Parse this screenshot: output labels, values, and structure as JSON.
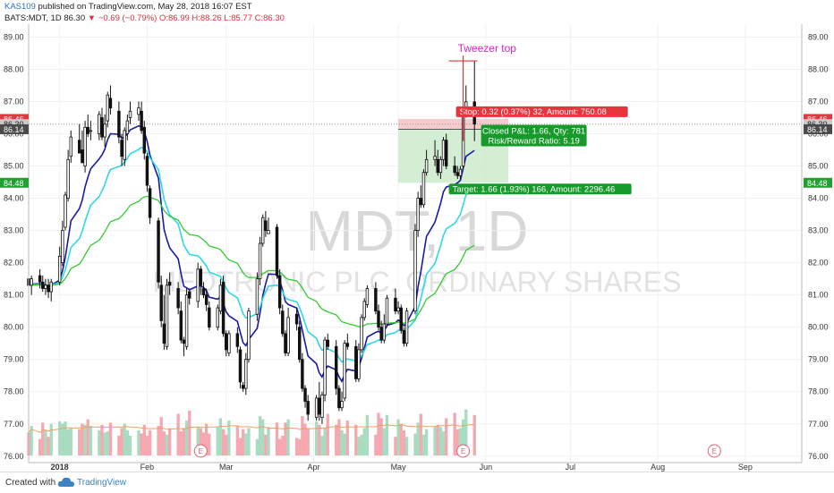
{
  "header": {
    "author": "KAS109",
    "published": " published on TradingView.com, May 28, 2018 16:07 EST",
    "symbol": "BATS:MDT, 1D",
    "last": "86.30",
    "change_arrow": "▼",
    "change": "−0.69 (−0.79%)",
    "ohlc": "O:86.99 H:88.26 L:85.77 C:86.30"
  },
  "watermark": {
    "symbol": "MDT, 1D",
    "name": "MEDTRONIC PLC. ORDINARY SHARES"
  },
  "annotation": {
    "text": "Tweezer top",
    "color": "#e020c8"
  },
  "position": {
    "stop_label": "Stop: 0.32 (0.37%) 32, Amount: 750.08",
    "pnl_label": "Closed P&L: 1.66, Qty: 781",
    "rr_label": "Risk/Reward Ratio: 5.19",
    "target_label": "Target: 1.66 (1.93%) 166, Amount: 2296.46",
    "stop_price": 86.46,
    "entry_price": 86.14,
    "target_price": 84.48,
    "start_date": "2018-05-01",
    "end_date": "2018-06-09"
  },
  "price_tags": [
    {
      "label": "86.46",
      "value": 86.46,
      "bg": "#e8343d",
      "fg": "#ffffff"
    },
    {
      "label": "86.30",
      "value": 86.3,
      "bg": "#c9c9c9",
      "fg": "#222222"
    },
    {
      "label": "86.14",
      "value": 86.14,
      "bg": "#4a4a4a",
      "fg": "#ffffff"
    },
    {
      "label": "84.48",
      "value": 84.48,
      "bg": "#20a030",
      "fg": "#ffffff"
    }
  ],
  "earnings_marker": "E",
  "footer": {
    "created": "Created with",
    "brand": "TradingView"
  },
  "colors": {
    "up": "#ffffff",
    "down": "#111111",
    "ema_fast": "#1a1aa6",
    "ema_mid": "#2ed8e8",
    "ema_slow": "#33cc33",
    "vol_up": "#a8dcc0",
    "vol_down": "#f5a8b0",
    "vol_ma": "#f0a060"
  },
  "chart_data": {
    "type": "candlestick",
    "title": "MDT, 1D",
    "ylim": [
      75.8,
      89.4
    ],
    "yticks": [
      76,
      77,
      78,
      79,
      80,
      81,
      82,
      83,
      84,
      85,
      86,
      87,
      88,
      89
    ],
    "ytick_labels": [
      "76.00",
      "77.00",
      "78.00",
      "79.00",
      "80.00",
      "81.00",
      "82.00",
      "83.00",
      "84.00",
      "85.00",
      "86.00",
      "87.00",
      "88.00",
      "89.00"
    ],
    "xlim": [
      "2017-12-21",
      "2018-09-21"
    ],
    "xticks": [
      {
        "label": "2018",
        "date": "2018-01-01"
      },
      {
        "label": "Feb",
        "date": "2018-02-01"
      },
      {
        "label": "Mar",
        "date": "2018-03-01"
      },
      {
        "label": "Apr",
        "date": "2018-04-01"
      },
      {
        "label": "May",
        "date": "2018-05-01"
      },
      {
        "label": "Jun",
        "date": "2018-06-01"
      },
      {
        "label": "Jul",
        "date": "2018-07-01"
      },
      {
        "label": "Aug",
        "date": "2018-08-01"
      },
      {
        "label": "Sep",
        "date": "2018-09-01"
      }
    ],
    "earnings_dates": [
      "2018-02-20",
      "2018-05-24",
      "2018-08-21"
    ],
    "tweezer": {
      "date": "2018-05-24",
      "high": 88.26
    },
    "candles": {
      "start_date": "2017-12-21",
      "open": [
        81.5,
        81.3,
        81.6,
        81.4,
        81.2,
        81.3,
        81.1,
        81.4,
        82.0,
        83.1,
        84.0,
        85.3,
        85.8,
        85.5,
        85.0,
        86.2,
        86.1,
        86.0,
        86.5,
        85.9,
        86.4,
        87.1,
        86.7,
        85.8,
        85.2,
        86.0,
        86.5,
        86.6,
        86.7,
        86.2,
        85.3,
        84.3,
        83.3,
        81.3,
        80.1,
        79.4,
        81.4,
        81.2,
        80.5,
        79.6,
        79.4,
        81.1,
        80.8,
        81.8,
        81.2,
        81.0,
        80.6,
        80.0,
        80.5,
        81.4,
        79.8,
        79.2,
        79.8,
        79.3,
        78.2,
        78.1,
        79.0,
        80.4,
        81.5,
        82.6,
        83.3,
        82.9,
        83.1,
        81.6,
        80.5,
        79.8,
        79.2,
        80.4,
        80.0,
        79.0,
        78.1,
        77.7,
        77.2,
        77.8,
        77.2,
        77.9,
        79.6,
        79.4,
        78.1,
        77.5,
        77.8,
        79.5,
        79.4,
        78.4,
        79.3,
        80.3,
        80.7,
        81.2,
        80.5,
        80.0,
        79.6,
        80.1,
        80.9,
        80.5,
        80.6,
        79.9,
        79.5,
        80.5,
        83.0,
        84.0,
        83.8,
        84.8,
        85.2,
        85.2,
        84.8,
        85.2,
        85.8,
        85.0,
        84.8,
        84.7,
        85.0,
        86.6,
        86.99
      ],
      "high": [
        81.8,
        81.6,
        81.8,
        81.6,
        81.5,
        81.5,
        81.5,
        82.5,
        83.3,
        84.2,
        85.5,
        86.1,
        86.3,
        86.1,
        86.4,
        86.6,
        86.4,
        86.7,
        86.8,
        86.6,
        87.3,
        87.5,
        87.0,
        86.0,
        86.2,
        86.6,
        87.0,
        87.0,
        87.0,
        86.4,
        85.4,
        84.4,
        83.4,
        81.6,
        81.0,
        81.5,
        81.7,
        81.4,
        80.8,
        79.7,
        81.2,
        81.2,
        82.0,
        81.9,
        81.4,
        81.2,
        80.8,
        80.7,
        81.5,
        81.6,
        79.9,
        79.9,
        80.0,
        79.4,
        78.3,
        79.2,
        80.6,
        81.7,
        82.8,
        83.5,
        83.6,
        83.4,
        83.2,
        81.8,
        80.7,
        79.9,
        80.6,
        80.6,
        80.2,
        79.2,
        78.2,
        77.9,
        77.9,
        78.3,
        78.0,
        79.7,
        79.8,
        79.6,
        78.2,
        78.0,
        79.6,
        79.8,
        79.6,
        79.5,
        80.4,
        80.9,
        81.3,
        81.4,
        80.7,
        80.2,
        80.4,
        81.0,
        81.2,
        80.8,
        80.7,
        80.0,
        80.6,
        83.2,
        84.2,
        84.4,
        84.9,
        85.5,
        85.8,
        85.5,
        85.3,
        85.9,
        86.0,
        85.3,
        85.0,
        85.0,
        86.8,
        87.5,
        88.26
      ],
      "low": [
        81.2,
        81.0,
        81.2,
        81.1,
        81.0,
        80.9,
        80.8,
        81.3,
        81.9,
        83.0,
        83.9,
        85.1,
        85.5,
        85.3,
        84.8,
        85.9,
        85.8,
        85.8,
        85.8,
        85.6,
        86.2,
        86.6,
        85.7,
        85.0,
        85.0,
        85.8,
        86.3,
        86.4,
        86.0,
        85.2,
        84.2,
        83.2,
        81.2,
        80.0,
        79.3,
        79.3,
        81.0,
        80.4,
        79.5,
        79.1,
        79.3,
        80.7,
        80.6,
        81.0,
        80.9,
        80.5,
        79.9,
        79.9,
        80.4,
        79.7,
        79.1,
        79.1,
        79.2,
        78.1,
        78.0,
        77.9,
        78.9,
        80.2,
        81.3,
        82.5,
        82.8,
        82.9,
        81.5,
        80.4,
        79.7,
        79.1,
        79.1,
        79.9,
        78.9,
        78.0,
        77.5,
        77.1,
        77.1,
        77.1,
        77.0,
        77.7,
        79.3,
        77.9,
        77.4,
        77.4,
        77.7,
        79.3,
        78.3,
        78.3,
        79.2,
        80.2,
        80.6,
        80.4,
        79.9,
        79.5,
        79.5,
        80.0,
        80.4,
        80.4,
        79.8,
        79.4,
        79.4,
        80.4,
        82.8,
        83.7,
        83.7,
        84.7,
        85.0,
        84.7,
        84.6,
        85.0,
        84.9,
        84.7,
        84.6,
        84.6,
        84.9,
        86.5,
        85.77
      ],
      "close": [
        81.3,
        81.5,
        81.4,
        81.2,
        81.3,
        81.1,
        81.4,
        82.2,
        83.0,
        84.1,
        85.2,
        85.9,
        85.4,
        85.1,
        86.2,
        86.0,
        86.1,
        86.6,
        85.9,
        86.3,
        87.2,
        86.8,
        85.9,
        85.3,
        86.1,
        86.4,
        86.7,
        86.8,
        86.1,
        85.4,
        84.4,
        83.4,
        81.4,
        80.2,
        79.5,
        81.3,
        81.3,
        80.6,
        79.6,
        79.5,
        81.0,
        80.9,
        81.8,
        81.3,
        81.0,
        80.7,
        80.0,
        80.6,
        81.3,
        79.8,
        79.3,
        79.8,
        79.4,
        78.3,
        78.1,
        79.0,
        80.5,
        81.5,
        82.6,
        83.4,
        83.0,
        83.0,
        81.6,
        80.6,
        79.8,
        79.2,
        80.3,
        80.1,
        79.0,
        78.1,
        77.7,
        77.3,
        77.8,
        77.3,
        77.9,
        79.6,
        79.4,
        78.1,
        77.5,
        77.7,
        79.5,
        79.4,
        78.4,
        79.3,
        80.3,
        80.8,
        81.2,
        80.5,
        80.0,
        79.6,
        80.1,
        80.9,
        80.5,
        80.6,
        79.9,
        79.5,
        80.5,
        83.0,
        84.0,
        83.8,
        84.8,
        85.2,
        85.3,
        84.8,
        85.2,
        85.8,
        85.0,
        84.8,
        84.7,
        84.9,
        86.6,
        86.99,
        86.3
      ]
    },
    "volume": [
      21,
      27,
      15,
      30,
      23,
      17,
      29,
      31,
      29,
      31,
      24,
      25,
      24,
      29,
      28,
      33,
      27,
      23,
      28,
      21,
      22,
      30,
      18,
      25,
      29,
      23,
      18,
      23,
      20,
      28,
      18,
      23,
      27,
      35,
      22,
      19,
      25,
      38,
      22,
      25,
      32,
      41,
      26,
      25,
      21,
      29,
      20,
      26,
      34,
      24,
      19,
      32,
      27,
      16,
      24,
      20,
      25,
      15,
      36,
      33,
      19,
      26,
      30,
      15,
      18,
      30,
      33,
      16,
      15,
      36,
      29,
      25,
      31,
      28,
      18,
      25,
      38,
      28,
      33,
      23,
      20,
      32,
      28,
      17,
      19,
      25,
      37,
      19,
      39,
      34,
      25,
      37,
      17,
      33,
      29,
      23,
      17,
      20,
      30,
      38,
      19,
      24,
      26,
      28,
      26,
      22,
      34,
      39,
      24,
      25,
      33,
      42,
      37
    ],
    "volume_max": 90,
    "volume_area_height": 110
  }
}
